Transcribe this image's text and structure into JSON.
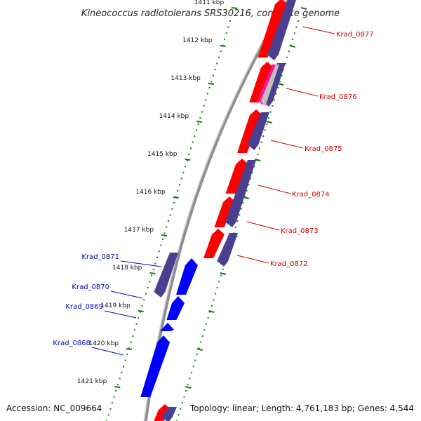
{
  "title": "Kineococcus radiotolerans SRS30216, complete genome",
  "accession": "Accession: NC_009664",
  "summary": "Topology: linear; Length: 4,761,183 bp; Genes: 4,544",
  "colors": {
    "forward_gene": "#ff0000",
    "forward_cds_alt": "#ff1493",
    "forward_product": "#4b3f8f",
    "reverse_gene": "#0000ff",
    "reverse_product": "#4b3f8f",
    "forward_label": "#d00000",
    "reverse_label": "#0000cc",
    "tick": "#117711"
  },
  "ticks": [
    {
      "kbp": 1411,
      "label": "1411 kbp"
    },
    {
      "kbp": 1412,
      "label": "1412 kbp"
    },
    {
      "kbp": 1413,
      "label": "1413 kbp"
    },
    {
      "kbp": 1414,
      "label": "1414 kbp"
    },
    {
      "kbp": 1415,
      "label": "1415 kbp"
    },
    {
      "kbp": 1416,
      "label": "1416 kbp"
    },
    {
      "kbp": 1417,
      "label": "1417 kbp"
    },
    {
      "kbp": 1418,
      "label": "1418 kbp"
    },
    {
      "kbp": 1419,
      "label": "1419 kbp"
    },
    {
      "kbp": 1420,
      "label": "1420 kbp"
    },
    {
      "kbp": 1421,
      "label": "1421 kbp"
    }
  ],
  "forward_genes": [
    {
      "name": "Krad_0877"
    },
    {
      "name": "Krad_0876"
    },
    {
      "name": "Krad_0875"
    },
    {
      "name": "Krad_0874"
    },
    {
      "name": "Krad_0873"
    },
    {
      "name": "Krad_0872"
    }
  ],
  "reverse_genes": [
    {
      "name": "Krad_0871"
    },
    {
      "name": "Krad_0870"
    },
    {
      "name": "Krad_0869"
    },
    {
      "name": "Krad_0868"
    }
  ]
}
